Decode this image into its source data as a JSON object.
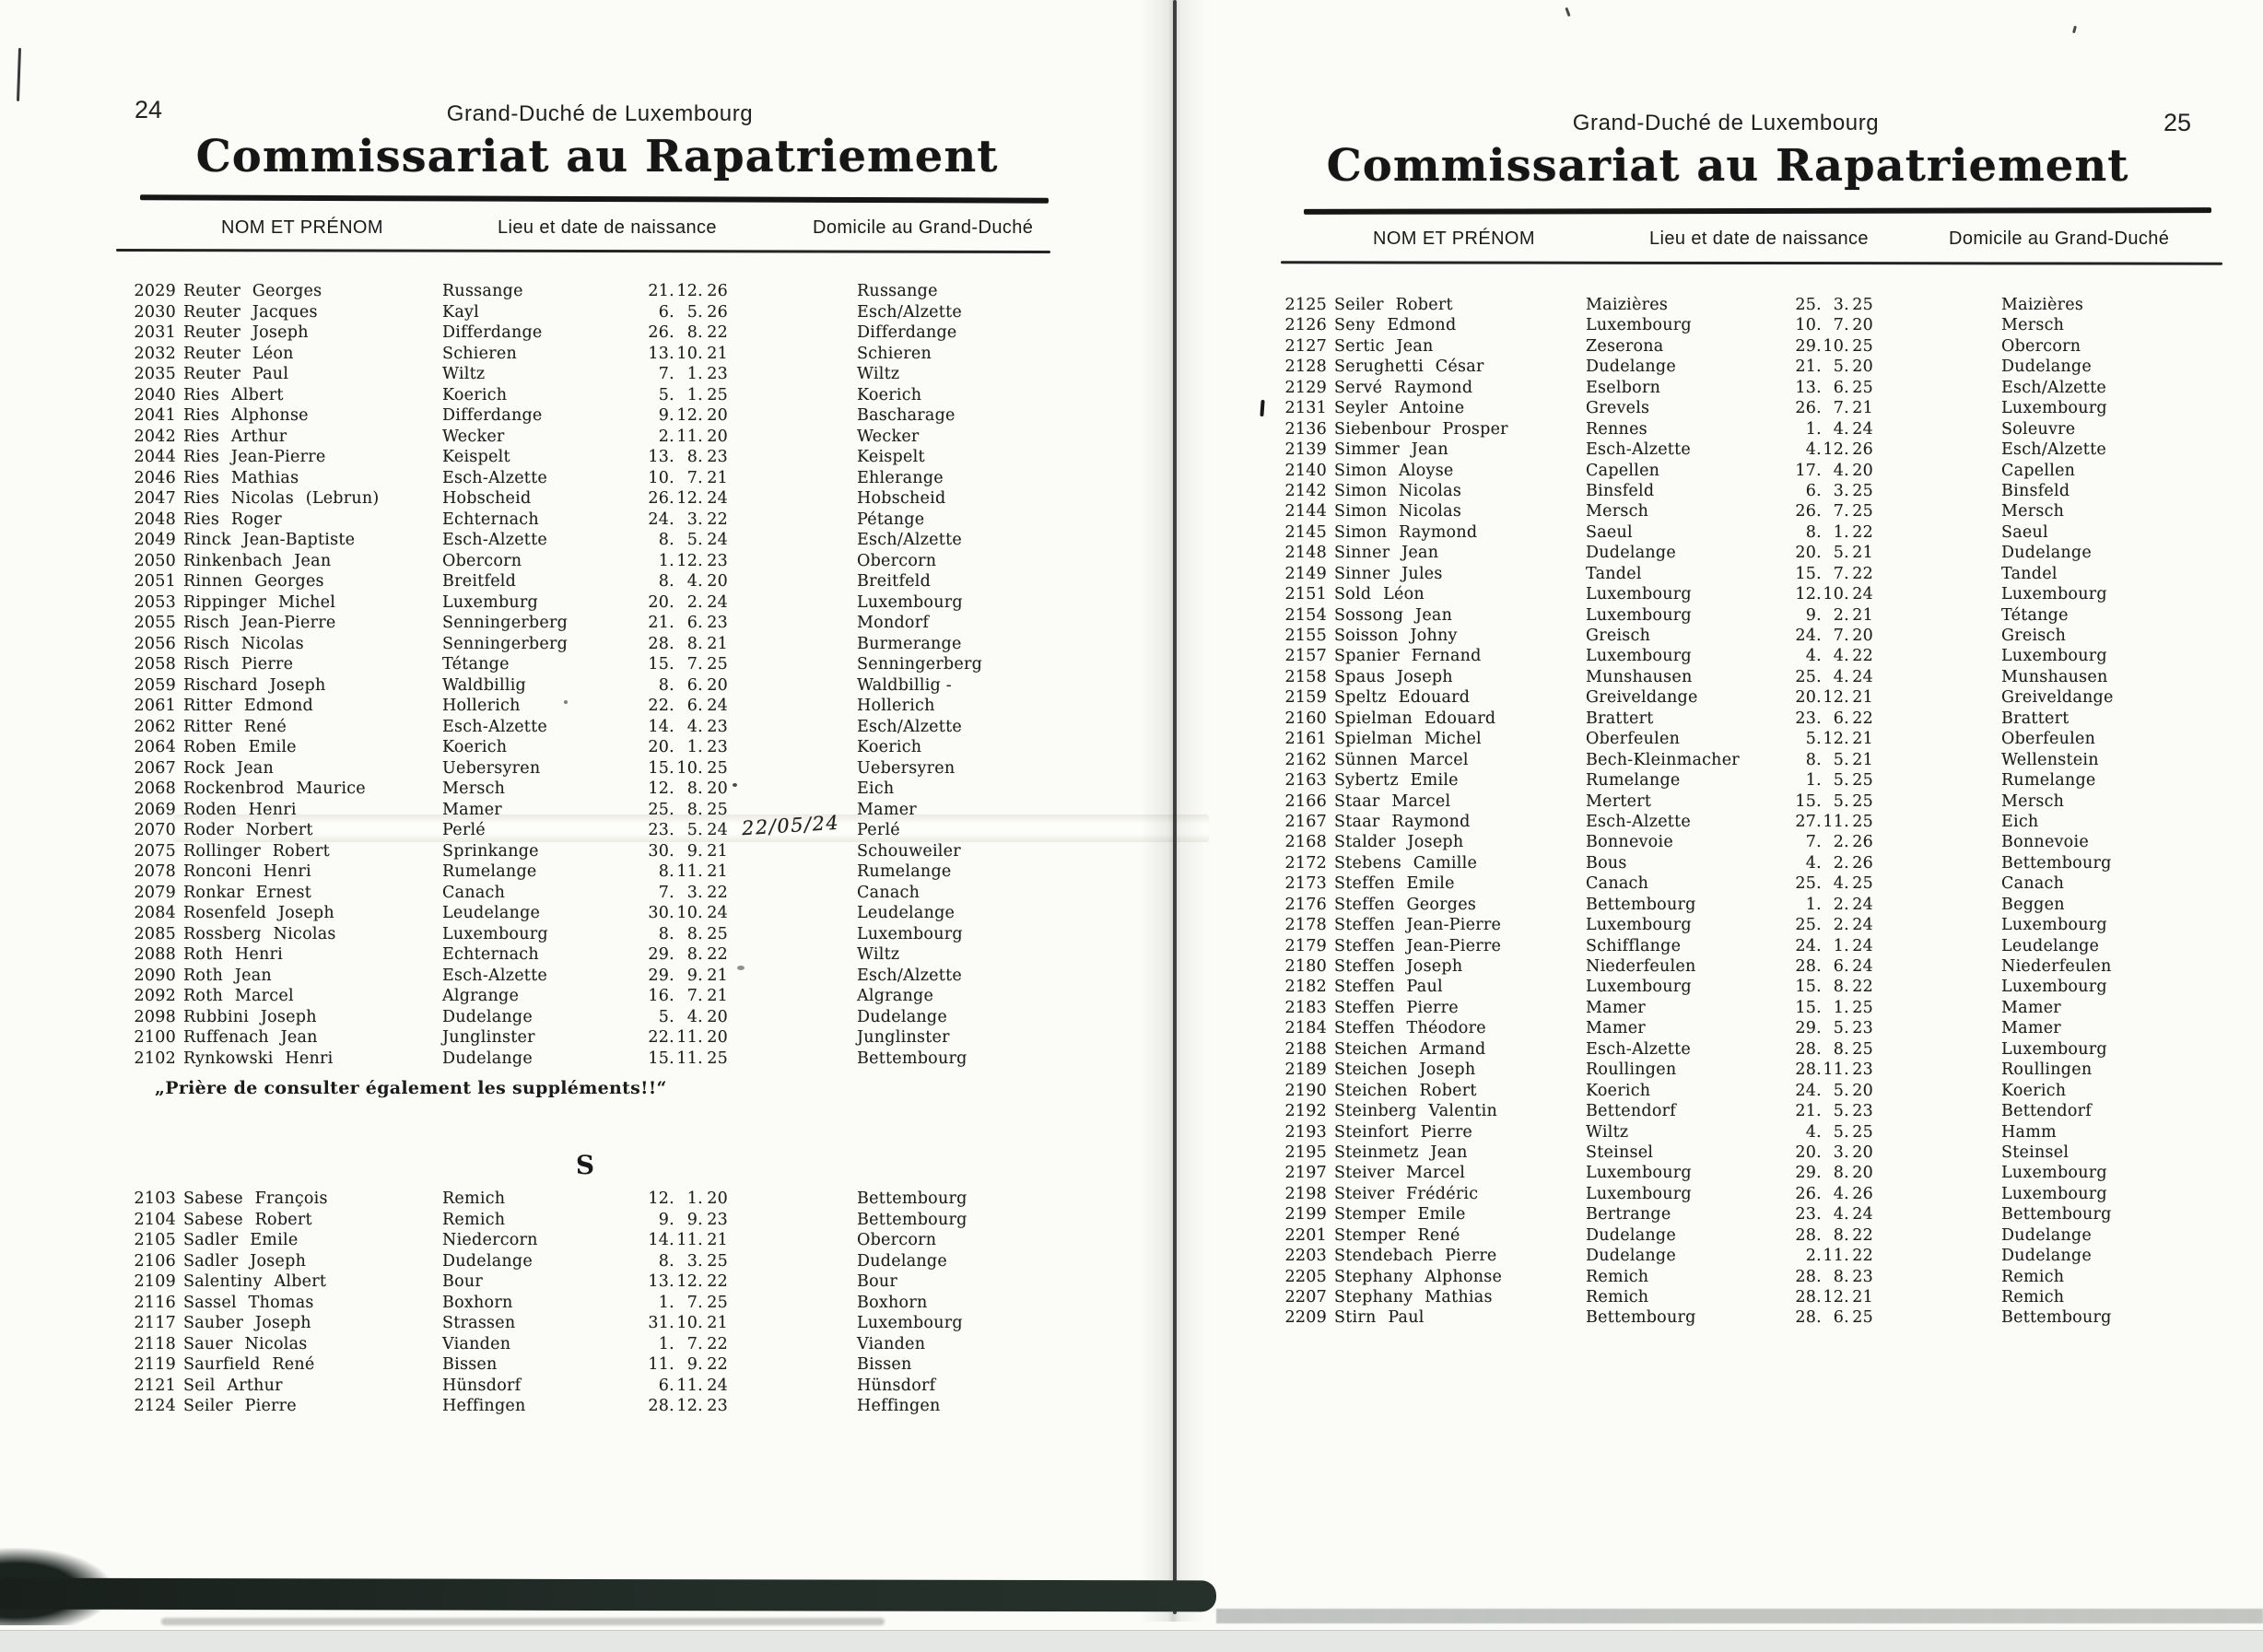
{
  "document": {
    "region_header": "Grand-Duché de Luxembourg",
    "title": "Commissariat au Rapatriement"
  },
  "columns": {
    "name": "NOM ET PRÉNOM",
    "birth": "Lieu et date de naissance",
    "domicile": "Domicile au Grand-Duché"
  },
  "colors": {
    "ink": "#1c1c1c",
    "paper": "#fbfbf8",
    "band": "#222b26"
  },
  "left_page": {
    "page_number": "24",
    "rows": [
      {
        "num": "2029",
        "name": "Reuter Georges",
        "birth": "Russange",
        "date": "21. 12. 26",
        "dom": "Russange"
      },
      {
        "num": "2030",
        "name": "Reuter Jacques",
        "birth": "Kayl",
        "date": "6. 5. 26",
        "dom": "Esch/Alzette"
      },
      {
        "num": "2031",
        "name": "Reuter Joseph",
        "birth": "Differdange",
        "date": "26. 8. 22",
        "dom": "Differdange"
      },
      {
        "num": "2032",
        "name": "Reuter Léon",
        "birth": "Schieren",
        "date": "13. 10. 21",
        "dom": "Schieren"
      },
      {
        "num": "2035",
        "name": "Reuter Paul",
        "birth": "Wiltz",
        "date": "7. 1. 23",
        "dom": "Wiltz"
      },
      {
        "num": "2040",
        "name": "Ries Albert",
        "birth": "Koerich",
        "date": "5. 1. 25",
        "dom": "Koerich"
      },
      {
        "num": "2041",
        "name": "Ries Alphonse",
        "birth": "Differdange",
        "date": "9. 12. 20",
        "dom": "Bascharage"
      },
      {
        "num": "2042",
        "name": "Ries Arthur",
        "birth": "Wecker",
        "date": "2. 11. 20",
        "dom": "Wecker"
      },
      {
        "num": "2044",
        "name": "Ries Jean-Pierre",
        "birth": "Keispelt",
        "date": "13. 8. 23",
        "dom": "Keispelt"
      },
      {
        "num": "2046",
        "name": "Ries Mathias",
        "birth": "Esch-Alzette",
        "date": "10. 7. 21",
        "dom": "Ehlerange"
      },
      {
        "num": "2047",
        "name": "Ries Nicolas (Lebrun)",
        "birth": "Hobscheid",
        "date": "26. 12. 24",
        "dom": "Hobscheid"
      },
      {
        "num": "2048",
        "name": "Ries Roger",
        "birth": "Echternach",
        "date": "24. 3. 22",
        "dom": "Pétange"
      },
      {
        "num": "2049",
        "name": "Rinck Jean-Baptiste",
        "birth": "Esch-Alzette",
        "date": "8. 5. 24",
        "dom": "Esch/Alzette"
      },
      {
        "num": "2050",
        "name": "Rinkenbach Jean",
        "birth": "Obercorn",
        "date": "1. 12. 23",
        "dom": "Obercorn"
      },
      {
        "num": "2051",
        "name": "Rinnen Georges",
        "birth": "Breitfeld",
        "date": "8. 4. 20",
        "dom": "Breitfeld"
      },
      {
        "num": "2053",
        "name": "Rippinger Michel",
        "birth": "Luxemburg",
        "date": "20. 2. 24",
        "dom": "Luxembourg"
      },
      {
        "num": "2055",
        "name": "Risch Jean-Pierre",
        "birth": "Senningerberg",
        "date": "21. 6. 23",
        "dom": "Mondorf"
      },
      {
        "num": "2056",
        "name": "Risch Nicolas",
        "birth": "Senningerberg",
        "date": "28. 8. 21",
        "dom": "Burmerange"
      },
      {
        "num": "2058",
        "name": "Risch Pierre",
        "birth": "Tétange",
        "date": "15. 7. 25",
        "dom": "Senningerberg"
      },
      {
        "num": "2059",
        "name": "Rischard Joseph",
        "birth": "Waldbillig",
        "date": "8. 6. 20",
        "dom": "Waldbillig -"
      },
      {
        "num": "2061",
        "name": "Ritter Edmond",
        "birth": "Hollerich",
        "date": "22. 6. 24",
        "dom": "Hollerich"
      },
      {
        "num": "2062",
        "name": "Ritter René",
        "birth": "Esch-Alzette",
        "date": "14. 4. 23",
        "dom": "Esch/Alzette"
      },
      {
        "num": "2064",
        "name": "Roben Emile",
        "birth": "Koerich",
        "date": "20. 1. 23",
        "dom": "Koerich"
      },
      {
        "num": "2067",
        "name": "Rock Jean",
        "birth": "Uebersyren",
        "date": "15. 10. 25",
        "dom": "Uebersyren"
      },
      {
        "num": "2068",
        "name": "Rockenbrod Maurice",
        "birth": "Mersch",
        "date": "12. 8. 20",
        "dom": "Eich"
      },
      {
        "num": "2069",
        "name": "Roden Henri",
        "birth": "Mamer",
        "date": "25. 8. 25",
        "dom": "Mamer"
      },
      {
        "num": "2070",
        "name": "Roder Norbert",
        "birth": "Perlé",
        "date": "23. 5. 24",
        "dom": "Perlé",
        "highlight": true,
        "annotation": "22/05/24"
      },
      {
        "num": "2075",
        "name": "Rollinger Robert",
        "birth": "Sprinkange",
        "date": "30. 9. 21",
        "dom": "Schouweiler"
      },
      {
        "num": "2078",
        "name": "Ronconi Henri",
        "birth": "Rumelange",
        "date": "8. 11. 21",
        "dom": "Rumelange"
      },
      {
        "num": "2079",
        "name": "Ronkar Ernest",
        "birth": "Canach",
        "date": "7. 3. 22",
        "dom": "Canach"
      },
      {
        "num": "2084",
        "name": "Rosenfeld Joseph",
        "birth": "Leudelange",
        "date": "30. 10. 24",
        "dom": "Leudelange"
      },
      {
        "num": "2085",
        "name": "Rossberg Nicolas",
        "birth": "Luxembourg",
        "date": "8. 8. 25",
        "dom": "Luxembourg"
      },
      {
        "num": "2088",
        "name": "Roth Henri",
        "birth": "Echternach",
        "date": "29. 8. 22",
        "dom": "Wiltz"
      },
      {
        "num": "2090",
        "name": "Roth Jean",
        "birth": "Esch-Alzette",
        "date": "29. 9. 21",
        "dom": "Esch/Alzette"
      },
      {
        "num": "2092",
        "name": "Roth Marcel",
        "birth": "Algrange",
        "date": "16. 7. 21",
        "dom": "Algrange"
      },
      {
        "num": "2098",
        "name": "Rubbini Joseph",
        "birth": "Dudelange",
        "date": "5. 4. 20",
        "dom": "Dudelange"
      },
      {
        "num": "2100",
        "name": "Ruffenach Jean",
        "birth": "Junglinster",
        "date": "22. 11. 20",
        "dom": "Junglinster"
      },
      {
        "num": "2102",
        "name": "Rynkowski Henri",
        "birth": "Dudelange",
        "date": "15. 11. 25",
        "dom": "Bettembourg"
      }
    ],
    "note": "„Prière de consulter également les suppléments!!“",
    "section_letter": "S",
    "section_rows": [
      {
        "num": "2103",
        "name": "Sabese François",
        "birth": "Remich",
        "date": "12. 1. 20",
        "dom": "Bettembourg"
      },
      {
        "num": "2104",
        "name": "Sabese Robert",
        "birth": "Remich",
        "date": "9. 9. 23",
        "dom": "Bettembourg"
      },
      {
        "num": "2105",
        "name": "Sadler Emile",
        "birth": "Niedercorn",
        "date": "14. 11. 21",
        "dom": "Obercorn"
      },
      {
        "num": "2106",
        "name": "Sadler Joseph",
        "birth": "Dudelange",
        "date": "8. 3. 25",
        "dom": "Dudelange"
      },
      {
        "num": "2109",
        "name": "Salentiny Albert",
        "birth": "Bour",
        "date": "13. 12. 22",
        "dom": "Bour"
      },
      {
        "num": "2116",
        "name": "Sassel Thomas",
        "birth": "Boxhorn",
        "date": "1. 7. 25",
        "dom": "Boxhorn"
      },
      {
        "num": "2117",
        "name": "Sauber Joseph",
        "birth": "Strassen",
        "date": "31. 10. 21",
        "dom": "Luxembourg"
      },
      {
        "num": "2118",
        "name": "Sauer Nicolas",
        "birth": "Vianden",
        "date": "1. 7. 22",
        "dom": "Vianden"
      },
      {
        "num": "2119",
        "name": "Saurfield René",
        "birth": "Bissen",
        "date": "11. 9. 22",
        "dom": "Bissen"
      },
      {
        "num": "2121",
        "name": "Seil Arthur",
        "birth": "Hünsdorf",
        "date": "6. 11. 24",
        "dom": "Hünsdorf"
      },
      {
        "num": "2124",
        "name": "Seiler Pierre",
        "birth": "Heffingen",
        "date": "28. 12. 23",
        "dom": "Heffingen"
      }
    ]
  },
  "right_page": {
    "page_number": "25",
    "rows": [
      {
        "num": "2125",
        "name": "Seiler Robert",
        "birth": "Maizières",
        "date": "25. 3. 25",
        "dom": "Maizières"
      },
      {
        "num": "2126",
        "name": "Seny Edmond",
        "birth": "Luxembourg",
        "date": "10. 7. 20",
        "dom": "Mersch"
      },
      {
        "num": "2127",
        "name": "Sertic Jean",
        "birth": "Zeserona",
        "date": "29. 10. 25",
        "dom": "Obercorn"
      },
      {
        "num": "2128",
        "name": "Serughetti César",
        "birth": "Dudelange",
        "date": "21. 5. 20",
        "dom": "Dudelange"
      },
      {
        "num": "2129",
        "name": "Servé Raymond",
        "birth": "Eselborn",
        "date": "13. 6. 25",
        "dom": "Esch/Alzette"
      },
      {
        "num": "2131",
        "name": "Seyler Antoine",
        "birth": "Grevels",
        "date": "26. 7. 21",
        "dom": "Luxembourg",
        "mark": true
      },
      {
        "num": "2136",
        "name": "Siebenbour Prosper",
        "birth": "Rennes",
        "date": "1. 4. 24",
        "dom": "Soleuvre"
      },
      {
        "num": "2139",
        "name": "Simmer Jean",
        "birth": "Esch-Alzette",
        "date": "4. 12. 26",
        "dom": "Esch/Alzette"
      },
      {
        "num": "2140",
        "name": "Simon Aloyse",
        "birth": "Capellen",
        "date": "17. 4. 20",
        "dom": "Capellen"
      },
      {
        "num": "2142",
        "name": "Simon Nicolas",
        "birth": "Binsfeld",
        "date": "6. 3. 25",
        "dom": "Binsfeld"
      },
      {
        "num": "2144",
        "name": "Simon Nicolas",
        "birth": "Mersch",
        "date": "26. 7. 25",
        "dom": "Mersch"
      },
      {
        "num": "2145",
        "name": "Simon Raymond",
        "birth": "Saeul",
        "date": "8. 1. 22",
        "dom": "Saeul"
      },
      {
        "num": "2148",
        "name": "Sinner Jean",
        "birth": "Dudelange",
        "date": "20. 5. 21",
        "dom": "Dudelange"
      },
      {
        "num": "2149",
        "name": "Sinner Jules",
        "birth": "Tandel",
        "date": "15. 7. 22",
        "dom": "Tandel"
      },
      {
        "num": "2151",
        "name": "Sold Léon",
        "birth": "Luxembourg",
        "date": "12. 10. 24",
        "dom": "Luxembourg"
      },
      {
        "num": "2154",
        "name": "Sossong Jean",
        "birth": "Luxembourg",
        "date": "9. 2. 21",
        "dom": "Tétange"
      },
      {
        "num": "2155",
        "name": "Soisson Johny",
        "birth": "Greisch",
        "date": "24. 7. 20",
        "dom": "Greisch"
      },
      {
        "num": "2157",
        "name": "Spanier Fernand",
        "birth": "Luxembourg",
        "date": "4. 4. 22",
        "dom": "Luxembourg"
      },
      {
        "num": "2158",
        "name": "Spaus Joseph",
        "birth": "Munshausen",
        "date": "25. 4. 24",
        "dom": "Munshausen"
      },
      {
        "num": "2159",
        "name": "Speltz Edouard",
        "birth": "Greiveldange",
        "date": "20. 12. 21",
        "dom": "Greiveldange"
      },
      {
        "num": "2160",
        "name": "Spielman Edouard",
        "birth": "Brattert",
        "date": "23. 6. 22",
        "dom": "Brattert"
      },
      {
        "num": "2161",
        "name": "Spielman Michel",
        "birth": "Oberfeulen",
        "date": "5. 12. 21",
        "dom": "Oberfeulen"
      },
      {
        "num": "2162",
        "name": "Sünnen Marcel",
        "birth": "Bech-Kleinmacher",
        "date": "8. 5. 21",
        "dom": "Wellenstein"
      },
      {
        "num": "2163",
        "name": "Sybertz Emile",
        "birth": "Rumelange",
        "date": "1. 5. 25",
        "dom": "Rumelange"
      },
      {
        "num": "2166",
        "name": "Staar Marcel",
        "birth": "Mertert",
        "date": "15. 5. 25",
        "dom": "Mersch"
      },
      {
        "num": "2167",
        "name": "Staar Raymond",
        "birth": "Esch-Alzette",
        "date": "27. 11. 25",
        "dom": "Eich"
      },
      {
        "num": "2168",
        "name": "Stalder Joseph",
        "birth": "Bonnevoie",
        "date": "7. 2. 26",
        "dom": "Bonnevoie"
      },
      {
        "num": "2172",
        "name": "Stebens Camille",
        "birth": "Bous",
        "date": "4. 2. 26",
        "dom": "Bettembourg"
      },
      {
        "num": "2173",
        "name": "Steffen Emile",
        "birth": "Canach",
        "date": "25. 4. 25",
        "dom": "Canach"
      },
      {
        "num": "2176",
        "name": "Steffen Georges",
        "birth": "Bettembourg",
        "date": "1. 2. 24",
        "dom": "Beggen"
      },
      {
        "num": "2178",
        "name": "Steffen Jean-Pierre",
        "birth": "Luxembourg",
        "date": "25. 2. 24",
        "dom": "Luxembourg"
      },
      {
        "num": "2179",
        "name": "Steffen Jean-Pierre",
        "birth": "Schifflange",
        "date": "24. 1. 24",
        "dom": "Leudelange"
      },
      {
        "num": "2180",
        "name": "Steffen Joseph",
        "birth": "Niederfeulen",
        "date": "28. 6. 24",
        "dom": "Niederfeulen"
      },
      {
        "num": "2182",
        "name": "Steffen Paul",
        "birth": "Luxembourg",
        "date": "15. 8. 22",
        "dom": "Luxembourg"
      },
      {
        "num": "2183",
        "name": "Steffen Pierre",
        "birth": "Mamer",
        "date": "15. 1. 25",
        "dom": "Mamer"
      },
      {
        "num": "2184",
        "name": "Steffen Théodore",
        "birth": "Mamer",
        "date": "29. 5. 23",
        "dom": "Mamer"
      },
      {
        "num": "2188",
        "name": "Steichen Armand",
        "birth": "Esch-Alzette",
        "date": "28. 8. 25",
        "dom": "Luxembourg"
      },
      {
        "num": "2189",
        "name": "Steichen Joseph",
        "birth": "Roullingen",
        "date": "28. 11. 23",
        "dom": "Roullingen"
      },
      {
        "num": "2190",
        "name": "Steichen Robert",
        "birth": "Koerich",
        "date": "24. 5. 20",
        "dom": "Koerich"
      },
      {
        "num": "2192",
        "name": "Steinberg Valentin",
        "birth": "Bettendorf",
        "date": "21. 5. 23",
        "dom": "Bettendorf"
      },
      {
        "num": "2193",
        "name": "Steinfort Pierre",
        "birth": "Wiltz",
        "date": "4. 5. 25",
        "dom": "Hamm"
      },
      {
        "num": "2195",
        "name": "Steinmetz Jean",
        "birth": "Steinsel",
        "date": "20. 3. 20",
        "dom": "Steinsel"
      },
      {
        "num": "2197",
        "name": "Steiver Marcel",
        "birth": "Luxembourg",
        "date": "29. 8. 20",
        "dom": "Luxembourg"
      },
      {
        "num": "2198",
        "name": "Steiver Frédéric",
        "birth": "Luxembourg",
        "date": "26. 4. 26",
        "dom": "Luxembourg"
      },
      {
        "num": "2199",
        "name": "Stemper Emile",
        "birth": "Bertrange",
        "date": "23. 4. 24",
        "dom": "Bettembourg"
      },
      {
        "num": "2201",
        "name": "Stemper René",
        "birth": "Dudelange",
        "date": "28. 8. 22",
        "dom": "Dudelange"
      },
      {
        "num": "2203",
        "name": "Stendebach Pierre",
        "birth": "Dudelange",
        "date": "2. 11. 22",
        "dom": "Dudelange"
      },
      {
        "num": "2205",
        "name": "Stephany Alphonse",
        "birth": "Remich",
        "date": "28. 8. 23",
        "dom": "Remich"
      },
      {
        "num": "2207",
        "name": "Stephany Mathias",
        "birth": "Remich",
        "date": "28. 12. 21",
        "dom": "Remich"
      },
      {
        "num": "2209",
        "name": "Stirn Paul",
        "birth": "Bettembourg",
        "date": "28. 6. 25",
        "dom": "Bettembourg"
      }
    ]
  }
}
